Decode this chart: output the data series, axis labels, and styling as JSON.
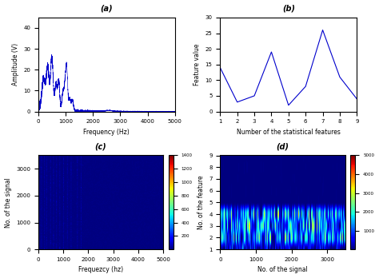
{
  "fig_width": 4.74,
  "fig_height": 3.48,
  "dpi": 100,
  "subplot_a": {
    "title": "(a)",
    "xlabel": "Frequency (Hz)",
    "ylabel": "Amplitude (V)",
    "xlim": [
      0,
      5000
    ],
    "ylim": [
      0,
      45
    ],
    "yticks": [
      0,
      10,
      20,
      30,
      40
    ],
    "xticks": [
      0,
      1000,
      2000,
      3000,
      4000,
      5000
    ],
    "line_color": "#0000cc",
    "noise_seed": 42
  },
  "subplot_b": {
    "title": "(b)",
    "xlabel": "Number of the statistical features",
    "ylabel": "Feature value",
    "xlim": [
      1,
      9
    ],
    "ylim": [
      0,
      30
    ],
    "yticks": [
      0,
      5,
      10,
      15,
      20,
      25,
      30
    ],
    "xticks": [
      1,
      2,
      3,
      4,
      5,
      6,
      7,
      8,
      9
    ],
    "line_color": "#0000cc",
    "x": [
      1,
      2,
      3,
      4,
      5,
      6,
      7,
      8,
      9
    ],
    "y": [
      14,
      3,
      5,
      19,
      2,
      8,
      26,
      11,
      4
    ]
  },
  "subplot_c": {
    "title": "(c)",
    "xlabel": "Frequezcy (hz)",
    "ylabel": "No. of the signal",
    "xlim": [
      0,
      5000
    ],
    "ylim": [
      0,
      3500
    ],
    "xticks": [
      0,
      1000,
      2000,
      3000,
      4000,
      5000
    ],
    "yticks": [
      0,
      1000,
      2000,
      3000
    ],
    "cmap": "jet",
    "vmin": 0,
    "vmax": 1400,
    "colorbar_ticks": [
      200,
      400,
      600,
      800,
      1000,
      1200,
      1400
    ]
  },
  "subplot_d": {
    "title": "(d)",
    "xlabel": "No. of the signal",
    "ylabel": "No. of the feature",
    "xlim": [
      0,
      3500
    ],
    "ylim": [
      1,
      9
    ],
    "xticks": [
      0,
      1000,
      2000,
      3000
    ],
    "yticks": [
      1,
      2,
      3,
      4,
      5,
      6,
      7,
      8,
      9
    ],
    "cmap": "jet",
    "vmin": 0,
    "vmax": 5000,
    "colorbar_ticks": [
      1000,
      2000,
      3000,
      4000,
      5000
    ]
  }
}
